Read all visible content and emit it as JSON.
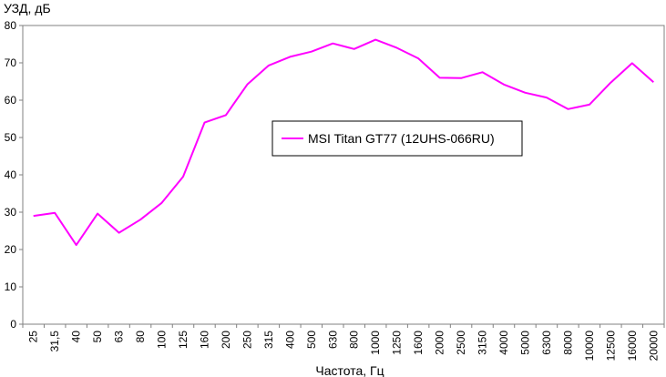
{
  "chart_data": {
    "type": "line",
    "ylabel": "УЗД, дБ",
    "xlabel": "Частота, Гц",
    "ylim": [
      0,
      80
    ],
    "yticks": [
      0,
      10,
      20,
      30,
      40,
      50,
      60,
      70,
      80
    ],
    "grid": false,
    "legend_position": "center",
    "categories": [
      "25",
      "31,5",
      "40",
      "50",
      "63",
      "80",
      "100",
      "125",
      "160",
      "200",
      "250",
      "315",
      "400",
      "500",
      "630",
      "800",
      "1000",
      "1250",
      "1600",
      "2000",
      "2500",
      "3150",
      "4000",
      "5000",
      "6300",
      "8000",
      "10000",
      "12500",
      "16000",
      "20000"
    ],
    "series": [
      {
        "name": "MSI Titan GT77 (12UHS-066RU)",
        "color": "#ff00ff",
        "values": [
          29.0,
          29.8,
          21.2,
          29.6,
          24.5,
          28.0,
          32.5,
          39.5,
          54.0,
          56.0,
          64.2,
          69.3,
          71.6,
          73.0,
          75.2,
          73.7,
          76.2,
          74.0,
          71.2,
          66.0,
          65.9,
          67.5,
          64.2,
          62.0,
          60.7,
          57.6,
          58.8,
          64.7,
          69.9,
          64.8
        ]
      }
    ]
  }
}
